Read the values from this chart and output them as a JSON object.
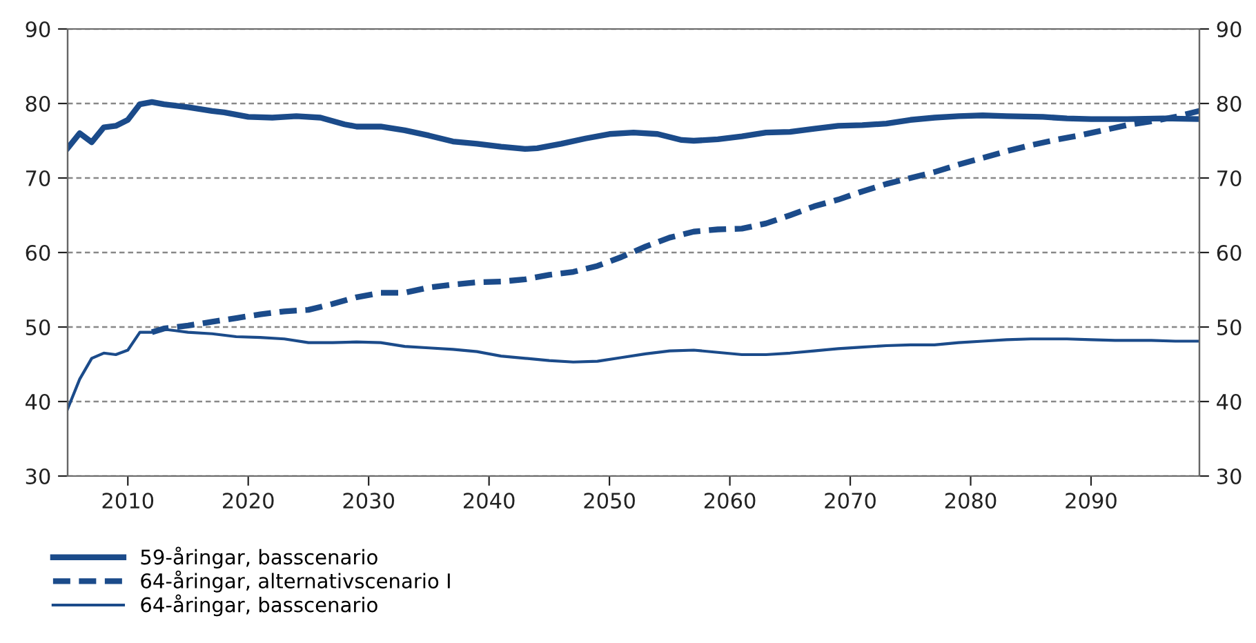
{
  "chart_data": {
    "type": "line",
    "xlim": [
      2005,
      2099
    ],
    "xticks": [
      2010,
      2020,
      2030,
      2040,
      2050,
      2060,
      2070,
      2080,
      2090
    ],
    "ylim": [
      30,
      90
    ],
    "yticks": [
      30,
      40,
      50,
      60,
      70,
      80,
      90
    ],
    "y2lim": [
      30,
      90
    ],
    "y2ticks": [
      30,
      40,
      50,
      60,
      70,
      80,
      90
    ],
    "grid": "y",
    "legend": "bottom left",
    "marker": "none",
    "series": [
      {
        "name": "59-åringar, basscenario",
        "color": "#1b4b8a",
        "line_style": "solid",
        "x": [
          2005,
          2006,
          2007,
          2008,
          2009,
          2010,
          2011,
          2012,
          2013,
          2015,
          2017,
          2018,
          2020,
          2022,
          2024,
          2026,
          2028,
          2029,
          2031,
          2033,
          2035,
          2037,
          2039,
          2041,
          2043,
          2044,
          2046,
          2048,
          2050,
          2052,
          2054,
          2056,
          2057,
          2059,
          2061,
          2063,
          2065,
          2067,
          2069,
          2071,
          2073,
          2075,
          2077,
          2079,
          2081,
          2083,
          2086,
          2088,
          2090,
          2093,
          2096,
          2099
        ],
        "values": [
          74,
          76,
          74.8,
          76.8,
          77,
          77.8,
          79.9,
          80.2,
          79.9,
          79.5,
          79,
          78.8,
          78.2,
          78.1,
          78.3,
          78.1,
          77.2,
          76.9,
          76.9,
          76.4,
          75.7,
          74.9,
          74.6,
          74.2,
          73.9,
          74,
          74.6,
          75.3,
          75.9,
          76.1,
          75.9,
          75.1,
          75,
          75.2,
          75.6,
          76.1,
          76.2,
          76.6,
          77,
          77.1,
          77.3,
          77.8,
          78.1,
          78.3,
          78.4,
          78.3,
          78.2,
          78,
          77.9,
          77.9,
          78,
          77.9
        ]
      },
      {
        "name": "64-åringar, alternativscenario I",
        "color": "#1b4b8a",
        "line_style": "dashed",
        "x": [
          2012,
          2013,
          2015,
          2017,
          2019,
          2021,
          2023,
          2025,
          2027,
          2029,
          2031,
          2033,
          2035,
          2037,
          2039,
          2041,
          2043,
          2045,
          2047,
          2049,
          2051,
          2053,
          2055,
          2057,
          2059,
          2061,
          2063,
          2065,
          2067,
          2069,
          2071,
          2073,
          2075,
          2077,
          2079,
          2081,
          2083,
          2085,
          2087,
          2089,
          2091,
          2093,
          2095,
          2097,
          2099
        ],
        "values": [
          49.3,
          49.8,
          50.2,
          50.7,
          51.2,
          51.7,
          52.1,
          52.3,
          53.1,
          54,
          54.6,
          54.6,
          55.3,
          55.7,
          56,
          56.1,
          56.4,
          57,
          57.4,
          58.2,
          59.4,
          60.8,
          62,
          62.8,
          63.1,
          63.2,
          63.9,
          65,
          66.2,
          67.1,
          68.2,
          69.2,
          70,
          70.8,
          71.8,
          72.7,
          73.6,
          74.4,
          75.1,
          75.7,
          76.4,
          77.1,
          77.6,
          78.2,
          79
        ]
      },
      {
        "name": "64-åringar, basscenario",
        "color": "#1b4b8a",
        "line_style": "solid",
        "x": [
          2005,
          2006,
          2007,
          2008,
          2009,
          2010,
          2011,
          2012,
          2013,
          2015,
          2017,
          2019,
          2021,
          2023,
          2025,
          2027,
          2029,
          2031,
          2033,
          2035,
          2037,
          2039,
          2041,
          2043,
          2045,
          2047,
          2049,
          2051,
          2053,
          2055,
          2057,
          2059,
          2061,
          2063,
          2065,
          2067,
          2069,
          2071,
          2073,
          2075,
          2077,
          2079,
          2081,
          2083,
          2085,
          2088,
          2090,
          2092,
          2095,
          2097,
          2099
        ],
        "values": [
          39,
          43,
          45.8,
          46.5,
          46.3,
          46.9,
          49.3,
          49.3,
          49.7,
          49.3,
          49.1,
          48.7,
          48.6,
          48.4,
          47.9,
          47.9,
          48,
          47.9,
          47.4,
          47.2,
          47,
          46.7,
          46.1,
          45.8,
          45.5,
          45.3,
          45.4,
          45.9,
          46.4,
          46.8,
          46.9,
          46.6,
          46.3,
          46.3,
          46.5,
          46.8,
          47.1,
          47.3,
          47.5,
          47.6,
          47.6,
          47.9,
          48.1,
          48.3,
          48.4,
          48.4,
          48.3,
          48.2,
          48.2,
          48.1,
          48.1
        ]
      }
    ]
  }
}
